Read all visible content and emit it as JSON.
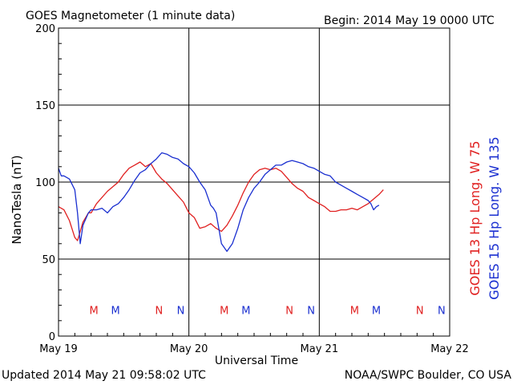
{
  "header": {
    "title": "GOES Magnetometer (1 minute data)",
    "begin": "Begin:  2014 May 19 0000 UTC"
  },
  "footer": {
    "updated": "Updated 2014 May 21 09:58:02 UTC",
    "credit": "NOAA/SWPC Boulder, CO USA"
  },
  "colors": {
    "goes13": "#e02020",
    "goes15": "#1a2fd0"
  },
  "chart_data": {
    "type": "line",
    "title": "GOES Magnetometer (1 minute data)",
    "xlabel": "Universal Time",
    "ylabel": "NanoTesla (nT)",
    "ylim": [
      0,
      200
    ],
    "xlim": [
      0,
      72
    ],
    "x_unit": "hours since 2014 May 19 0000 UTC",
    "grid": true,
    "yticks": [
      0,
      50,
      100,
      150,
      200
    ],
    "ytick_labels": [
      "0",
      "50",
      "100",
      "150",
      "200"
    ],
    "xticks": [
      0,
      24,
      48,
      72
    ],
    "xtick_labels": [
      "May 19",
      "May 20",
      "May 21",
      "May 22"
    ],
    "legend_position": "right (rotated)",
    "series": [
      {
        "name": "GOES 13 Hp  Long. W 75",
        "color": "#e02020",
        "x": [
          0,
          1,
          2,
          3,
          3.5,
          4,
          4.5,
          5,
          5.5,
          6,
          7,
          8,
          9,
          10,
          11,
          12,
          13,
          14,
          15,
          16,
          17,
          18,
          19,
          20,
          21,
          22,
          23,
          24,
          25,
          26,
          27,
          28,
          29,
          30,
          31,
          32,
          33,
          34,
          35,
          36,
          37,
          38,
          39,
          40,
          41,
          42,
          43,
          44,
          45,
          46,
          47,
          48,
          49,
          50,
          51,
          52,
          53,
          54,
          55,
          56,
          57,
          58,
          59,
          59.8
        ],
        "y": [
          84,
          82,
          75,
          64,
          62,
          68,
          74,
          77,
          80,
          80,
          86,
          90,
          94,
          97,
          100,
          105,
          109,
          111,
          113,
          110,
          112,
          106,
          102,
          99,
          95,
          91,
          87,
          80,
          77,
          70,
          71,
          73,
          70,
          68,
          72,
          78,
          85,
          93,
          100,
          105,
          108,
          109,
          108,
          109,
          107,
          103,
          99,
          96,
          94,
          90,
          88,
          86,
          84,
          81,
          81,
          82,
          82,
          83,
          82,
          84,
          86,
          89,
          92,
          95
        ]
      },
      {
        "name": "GOES 15 Hp  Long. W 135",
        "color": "#1a2fd0",
        "x": [
          0,
          0.5,
          1,
          2,
          3,
          3.5,
          4,
          4.5,
          5,
          5.5,
          6,
          7,
          8,
          9,
          10,
          11,
          12,
          13,
          14,
          15,
          16,
          17,
          18,
          19,
          20,
          21,
          22,
          23,
          24,
          25,
          26,
          27,
          27.5,
          28,
          28.5,
          29,
          30,
          31,
          32,
          33,
          34,
          35,
          36,
          37,
          38,
          39,
          40,
          41,
          42,
          43,
          44,
          45,
          46,
          47,
          48,
          49,
          50,
          51,
          52,
          53,
          54,
          55,
          56,
          57,
          57.5,
          58,
          58.5,
          59
        ],
        "y": [
          109,
          104,
          104,
          102,
          95,
          80,
          60,
          72,
          76,
          80,
          82,
          82,
          83,
          80,
          84,
          86,
          90,
          95,
          101,
          106,
          108,
          112,
          115,
          119,
          118,
          116,
          115,
          112,
          110,
          106,
          100,
          95,
          90,
          85,
          83,
          80,
          60,
          55,
          60,
          70,
          82,
          90,
          96,
          100,
          105,
          108,
          111,
          111,
          113,
          114,
          113,
          112,
          110,
          109,
          107,
          105,
          104,
          100,
          98,
          96,
          94,
          92,
          90,
          88,
          86,
          82,
          84,
          85
        ]
      }
    ],
    "annotations": [
      {
        "text": "M",
        "x": 6.5,
        "y": 17,
        "color": "#e02020"
      },
      {
        "text": "M",
        "x": 10.5,
        "y": 17,
        "color": "#1a2fd0"
      },
      {
        "text": "N",
        "x": 18.5,
        "y": 17,
        "color": "#e02020"
      },
      {
        "text": "N",
        "x": 22.5,
        "y": 17,
        "color": "#1a2fd0"
      },
      {
        "text": "M",
        "x": 30.5,
        "y": 17,
        "color": "#e02020"
      },
      {
        "text": "M",
        "x": 34.5,
        "y": 17,
        "color": "#1a2fd0"
      },
      {
        "text": "N",
        "x": 42.5,
        "y": 17,
        "color": "#e02020"
      },
      {
        "text": "N",
        "x": 46.5,
        "y": 17,
        "color": "#1a2fd0"
      },
      {
        "text": "M",
        "x": 54.5,
        "y": 17,
        "color": "#e02020"
      },
      {
        "text": "M",
        "x": 58.5,
        "y": 17,
        "color": "#1a2fd0"
      },
      {
        "text": "N",
        "x": 66.5,
        "y": 17,
        "color": "#e02020"
      },
      {
        "text": "N",
        "x": 70.5,
        "y": 17,
        "color": "#1a2fd0"
      }
    ]
  }
}
